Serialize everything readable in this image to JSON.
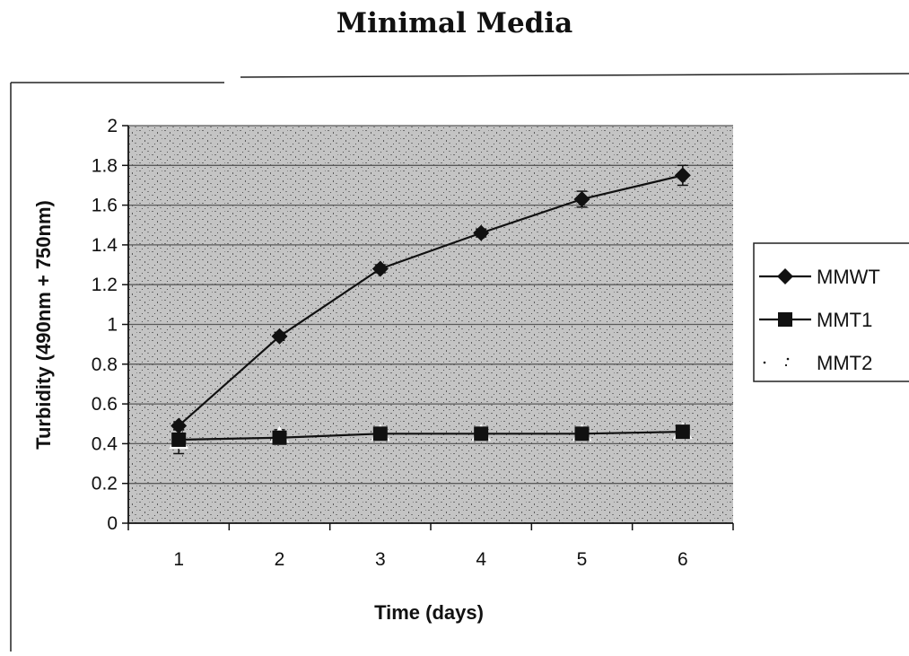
{
  "title": "Minimal Media",
  "chart_data": {
    "type": "line",
    "title": "Minimal Media",
    "xlabel": "Time (days)",
    "ylabel": "Turbidity (490nm + 750nm)",
    "categories": [
      "1",
      "2",
      "3",
      "4",
      "5",
      "6"
    ],
    "ylim": [
      0,
      2
    ],
    "yticks": [
      "0",
      "0.2",
      "0.4",
      "0.6",
      "0.8",
      "1",
      "1.2",
      "1.4",
      "1.6",
      "1.8",
      "2"
    ],
    "grid": "horizontal",
    "legend_position": "right",
    "series": [
      {
        "name": "MMWT",
        "marker": "diamond",
        "values": [
          0.49,
          0.94,
          1.28,
          1.46,
          1.63,
          1.75
        ],
        "error": [
          0.02,
          0.02,
          0.02,
          0.02,
          0.04,
          0.05
        ]
      },
      {
        "name": "MMT1",
        "marker": "square",
        "values": [
          0.42,
          0.43,
          0.45,
          0.45,
          0.45,
          0.46
        ],
        "error": [
          0.01,
          0.01,
          0.01,
          0.01,
          0.01,
          0.01
        ]
      },
      {
        "name": "MMT2",
        "marker": "triangle",
        "values": [
          0.41,
          0.44,
          0.45,
          0.45,
          0.45,
          0.46
        ],
        "error": [
          0.06,
          0.03,
          0.03,
          0.03,
          0.03,
          0.03
        ]
      }
    ]
  },
  "colors": {
    "line": "#111111",
    "plot_background": "#b8b8b8",
    "gridline": "#5a5a5a"
  }
}
